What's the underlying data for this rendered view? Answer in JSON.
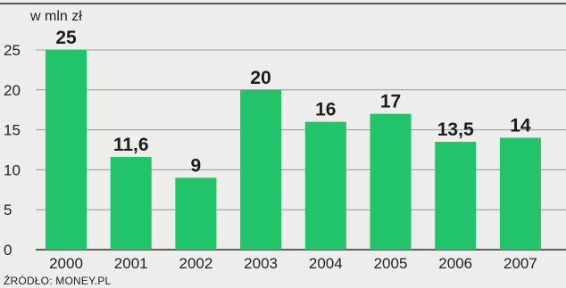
{
  "chart_data": {
    "type": "bar",
    "unit_label": "w mln zł",
    "categories": [
      "2000",
      "2001",
      "2002",
      "2003",
      "2004",
      "2005",
      "2006",
      "2007"
    ],
    "values": [
      25,
      11.6,
      9,
      20,
      16,
      17,
      13.5,
      14
    ],
    "value_labels": [
      "25",
      "11,6",
      "9",
      "20",
      "16",
      "17",
      "13,5",
      "14"
    ],
    "yticks": [
      0,
      5,
      10,
      15,
      20,
      25
    ],
    "ylim": [
      0,
      25
    ],
    "grid": true,
    "bar_color": "#22c46b",
    "source": "ŹRÓDŁO: MONEY.PL"
  }
}
